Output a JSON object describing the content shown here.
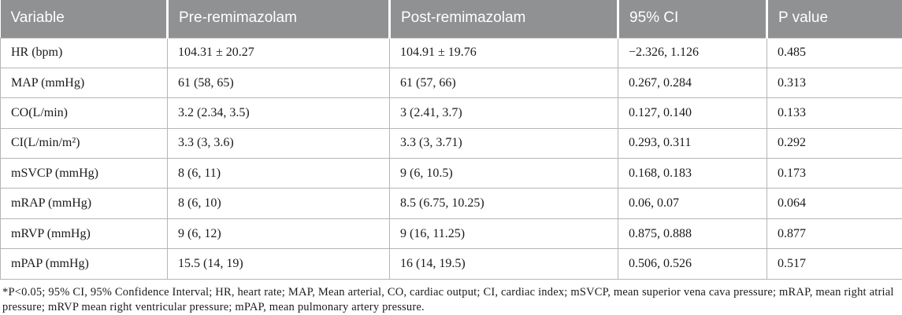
{
  "table": {
    "columns": [
      "Variable",
      "Pre-remimazolam",
      "Post-remimazolam",
      "95% CI",
      "P value"
    ],
    "rows": [
      {
        "variable": "HR (bpm)",
        "pre": "104.31 ± 20.27",
        "post": "104.91 ± 19.76",
        "ci": "−2.326, 1.126",
        "p": "0.485"
      },
      {
        "variable": "MAP (mmHg)",
        "pre": "61 (58, 65)",
        "post": "61 (57, 66)",
        "ci": "0.267, 0.284",
        "p": "0.313"
      },
      {
        "variable": "CO(L/min)",
        "pre": "3.2 (2.34, 3.5)",
        "post": "3 (2.41, 3.7)",
        "ci": "0.127, 0.140",
        "p": "0.133"
      },
      {
        "variable": "CI(L/min/m²)",
        "pre": "3.3 (3, 3.6)",
        "post": "3.3 (3, 3.71)",
        "ci": "0.293, 0.311",
        "p": "0.292"
      },
      {
        "variable": "mSVCP (mmHg)",
        "pre": "8 (6, 11)",
        "post": "9 (6, 10.5)",
        "ci": "0.168, 0.183",
        "p": "0.173"
      },
      {
        "variable": "mRAP (mmHg)",
        "pre": "8 (6, 10)",
        "post": "8.5 (6.75, 10.25)",
        "ci": "0.06, 0.07",
        "p": "0.064"
      },
      {
        "variable": "mRVP (mmHg)",
        "pre": "9 (6, 12)",
        "post": "9 (16, 11.25)",
        "ci": "0.875, 0.888",
        "p": "0.877"
      },
      {
        "variable": "mPAP (mmHg)",
        "pre": "15.5 (14, 19)",
        "post": "16 (14, 19.5)",
        "ci": "0.506, 0.526",
        "p": "0.517"
      }
    ],
    "footnote": "*P<0.05; 95% CI, 95% Confidence Interval; HR, heart rate; MAP, Mean arterial, CO, cardiac output; CI, cardiac index; mSVCP, mean superior vena cava pressure; mRAP, mean right atrial pressure; mRVP mean right ventricular pressure; mPAP, mean pulmonary artery pressure."
  },
  "colors": {
    "header_bg": "#8f9192",
    "header_text": "#ffffff",
    "border": "#b5b5b5",
    "body_text": "#1b1b1b"
  }
}
